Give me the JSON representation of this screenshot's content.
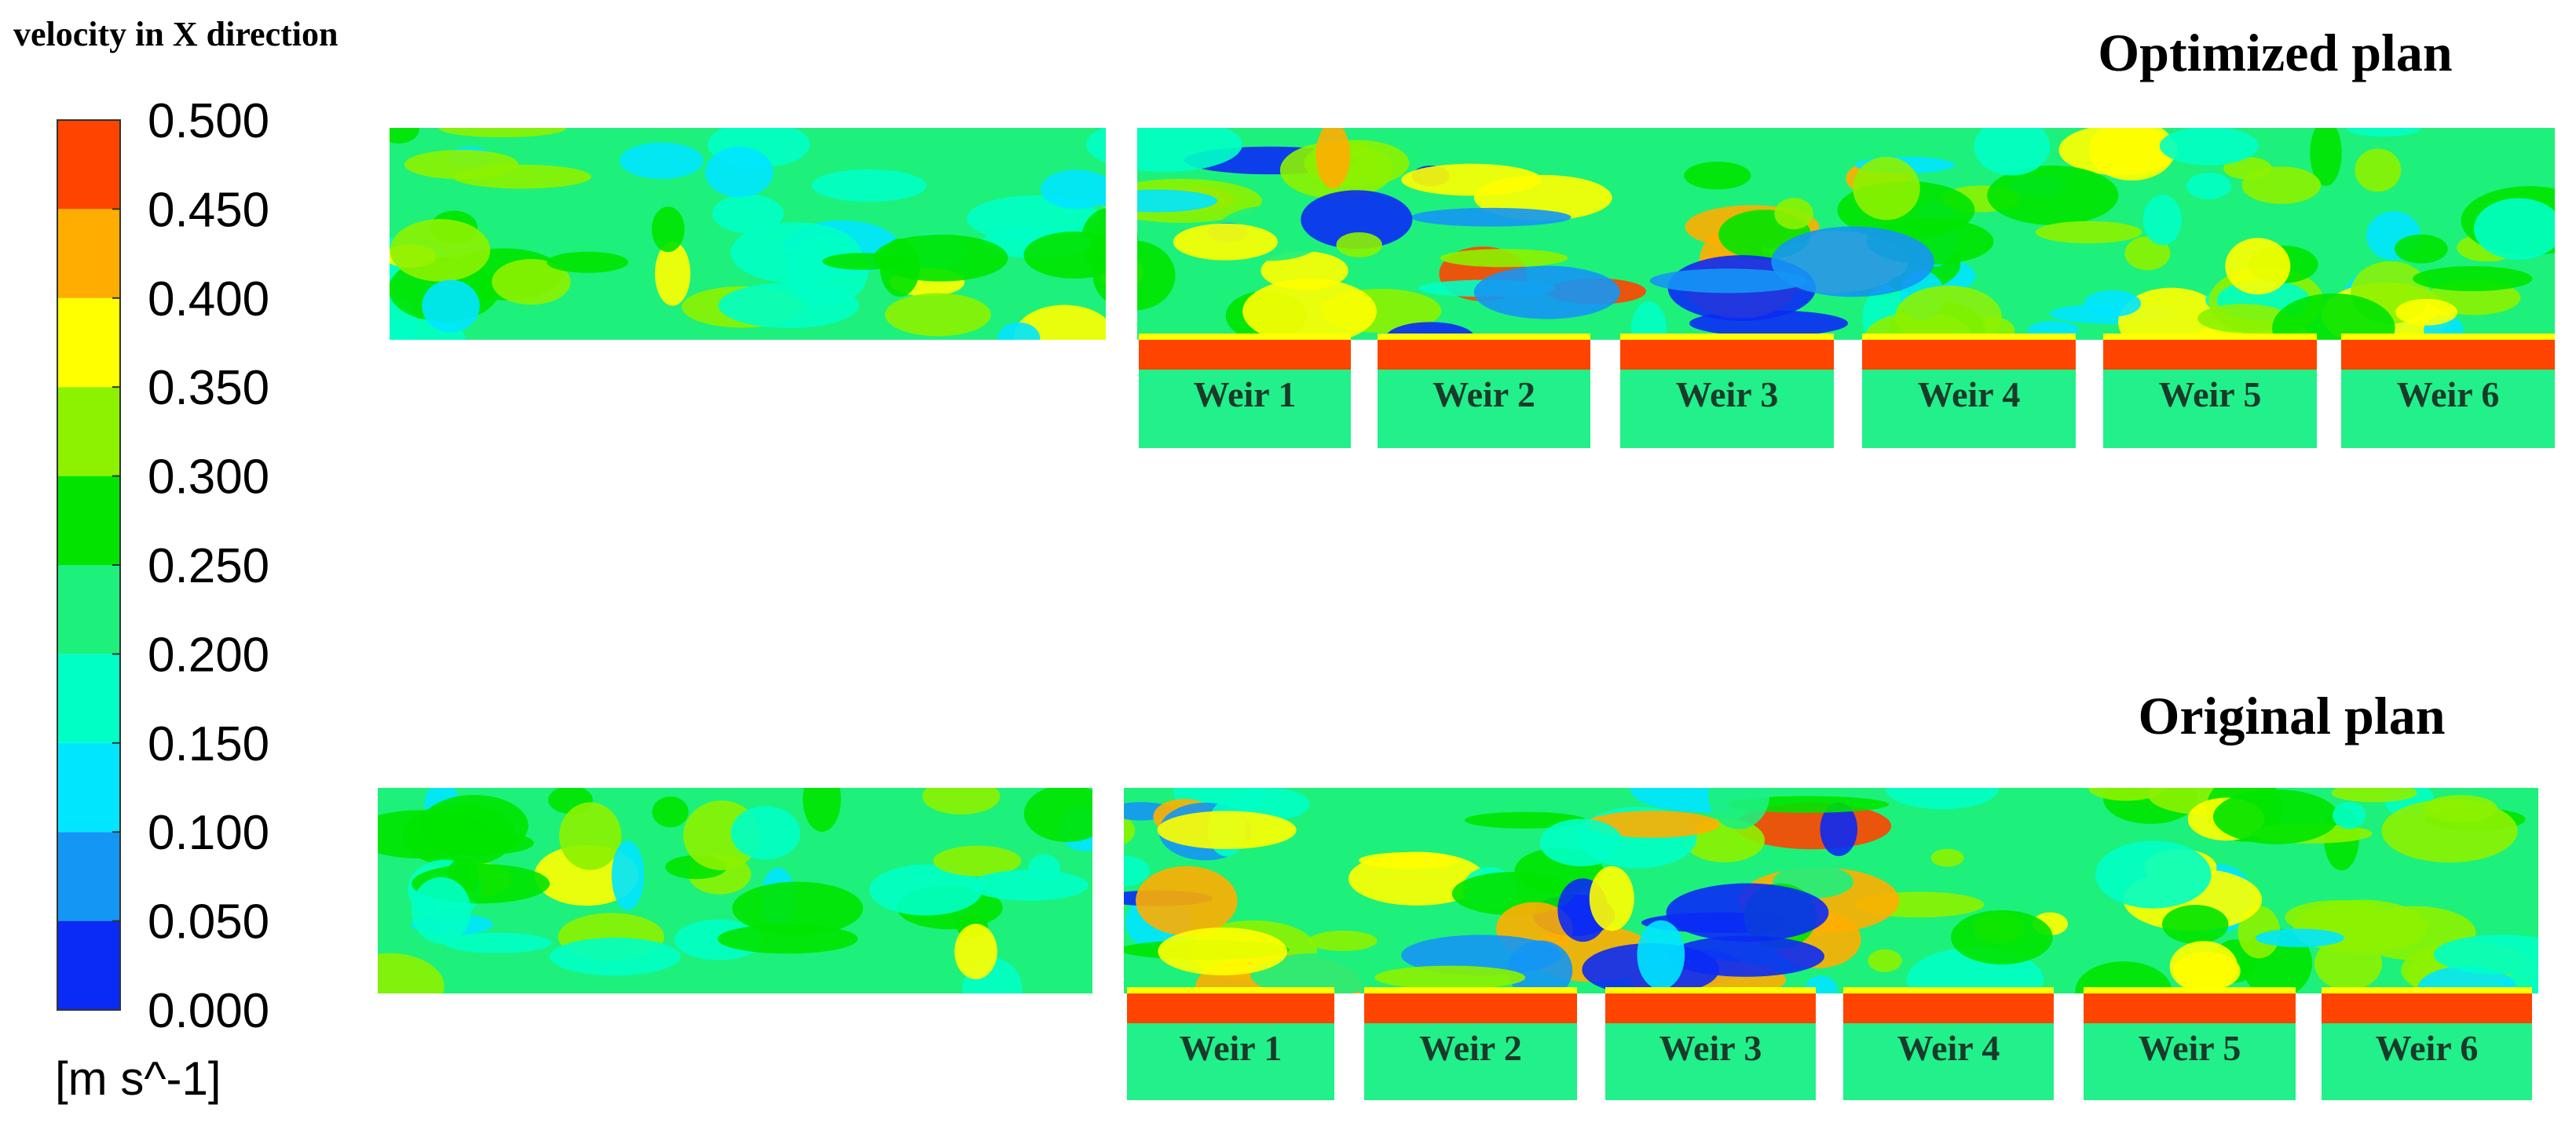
{
  "figure": {
    "title": "velocity in X direction",
    "colorbar": {
      "ticks": [
        {
          "value": 0,
          "label": "0.000"
        },
        {
          "value": 0.05,
          "label": "0.050"
        },
        {
          "value": 0.1,
          "label": "0.100"
        },
        {
          "value": 0.15,
          "label": "0.150"
        },
        {
          "value": 0.2,
          "label": "0.200"
        },
        {
          "value": 0.25,
          "label": "0.250"
        },
        {
          "value": 0.3,
          "label": "0.300"
        },
        {
          "value": 0.35,
          "label": "0.350"
        },
        {
          "value": 0.4,
          "label": "0.400"
        },
        {
          "value": 0.45,
          "label": "0.450"
        },
        {
          "value": 0.5,
          "label": "0.500"
        }
      ],
      "colors": [
        "#0a2af5",
        "#1496f5",
        "#00e6ff",
        "#00ffc4",
        "#1ef07c",
        "#00e400",
        "#8cf200",
        "#ffff00",
        "#ffae00",
        "#ff4400"
      ],
      "unit": "[m s^-1]"
    },
    "panels": [
      {
        "title": "Optimized plan",
        "weirs": [
          "Weir 1",
          "Weir 2",
          "Weir 3",
          "Weir 4",
          "Weir 5",
          "Weir 6"
        ]
      },
      {
        "title": "Original plan",
        "weirs": [
          "Weir 1",
          "Weir 2",
          "Weir 3",
          "Weir 4",
          "Weir 5",
          "Weir 6"
        ]
      }
    ]
  }
}
